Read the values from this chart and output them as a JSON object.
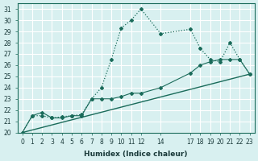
{
  "xlabel": "Humidex (Indice chaleur)",
  "bg_color": "#d8f0f0",
  "grid_color": "#ffffff",
  "line_color": "#1a6b5a",
  "xlim": [
    -0.5,
    23.5
  ],
  "ylim": [
    20,
    31.5
  ],
  "xticks": [
    0,
    1,
    2,
    3,
    4,
    5,
    6,
    7,
    8,
    9,
    10,
    11,
    12,
    14,
    17,
    18,
    19,
    20,
    21,
    22,
    23
  ],
  "yticks": [
    20,
    21,
    22,
    23,
    24,
    25,
    26,
    27,
    28,
    29,
    30,
    31
  ],
  "series1_x": [
    0,
    1,
    2,
    3,
    4,
    5,
    6,
    7,
    8,
    9,
    10,
    11,
    12,
    14,
    17,
    18,
    19,
    20,
    21,
    22,
    23
  ],
  "series1_y": [
    20.0,
    21.5,
    21.5,
    21.3,
    21.4,
    21.5,
    21.6,
    23.0,
    24.0,
    26.5,
    29.3,
    30.0,
    31.0,
    28.8,
    29.2,
    27.5,
    26.5,
    26.3,
    28.0,
    26.5,
    25.2
  ],
  "series2_x": [
    0,
    1,
    2,
    3,
    4,
    5,
    6,
    7,
    8,
    9,
    10,
    11,
    12,
    14,
    17,
    18,
    19,
    20,
    21,
    22,
    23
  ],
  "series2_y": [
    20.0,
    21.5,
    21.8,
    21.3,
    21.3,
    21.5,
    21.5,
    23.0,
    23.0,
    23.0,
    23.2,
    23.5,
    23.5,
    24.0,
    25.3,
    26.0,
    26.3,
    26.5,
    26.5,
    26.5,
    25.2
  ],
  "series3_x": [
    0,
    23
  ],
  "series3_y": [
    20.0,
    25.2
  ]
}
